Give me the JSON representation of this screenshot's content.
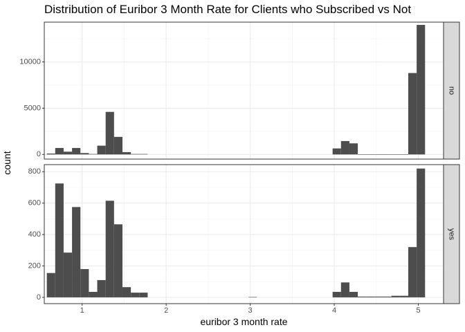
{
  "chart_data": {
    "type": "bar",
    "title": "Distribution of Euribor 3 Month Rate for Clients who Subscribed vs Not",
    "xlabel": "euribor 3 month rate",
    "ylabel": "count",
    "xlim": [
      0.55,
      5.3
    ],
    "bin_width": 0.1,
    "x_ticks": [
      1,
      2,
      3,
      4,
      5
    ],
    "grid": true,
    "facet_by": "subscribed",
    "series_color": "#4d4d4d",
    "strip_color": "#d9d9d9",
    "panels": [
      {
        "name": "no",
        "ylim": [
          -500,
          14300
        ],
        "y_ticks": [
          0,
          5000,
          10000
        ],
        "bins": [
          {
            "x": 0.63,
            "count": 100
          },
          {
            "x": 0.73,
            "count": 700
          },
          {
            "x": 0.83,
            "count": 300
          },
          {
            "x": 0.93,
            "count": 700
          },
          {
            "x": 1.03,
            "count": 150
          },
          {
            "x": 1.13,
            "count": 50
          },
          {
            "x": 1.23,
            "count": 950
          },
          {
            "x": 1.33,
            "count": 4600
          },
          {
            "x": 1.43,
            "count": 1900
          },
          {
            "x": 1.53,
            "count": 250
          },
          {
            "x": 1.63,
            "count": 50
          },
          {
            "x": 1.73,
            "count": 50
          },
          {
            "x": 4.03,
            "count": 650
          },
          {
            "x": 4.13,
            "count": 1450
          },
          {
            "x": 4.23,
            "count": 1200
          },
          {
            "x": 4.33,
            "count": 20
          },
          {
            "x": 4.43,
            "count": 10
          },
          {
            "x": 4.53,
            "count": 10
          },
          {
            "x": 4.63,
            "count": 10
          },
          {
            "x": 4.73,
            "count": 20
          },
          {
            "x": 4.83,
            "count": 20
          },
          {
            "x": 4.93,
            "count": 8800
          },
          {
            "x": 5.03,
            "count": 14000
          }
        ]
      },
      {
        "name": "yes",
        "ylim": [
          -40,
          845
        ],
        "y_ticks": [
          0,
          200,
          400,
          600,
          800
        ],
        "bins": [
          {
            "x": 0.63,
            "count": 155
          },
          {
            "x": 0.73,
            "count": 725
          },
          {
            "x": 0.83,
            "count": 285
          },
          {
            "x": 0.93,
            "count": 575
          },
          {
            "x": 1.03,
            "count": 180
          },
          {
            "x": 1.13,
            "count": 35
          },
          {
            "x": 1.23,
            "count": 110
          },
          {
            "x": 1.33,
            "count": 615
          },
          {
            "x": 1.43,
            "count": 465
          },
          {
            "x": 1.53,
            "count": 65
          },
          {
            "x": 1.63,
            "count": 30
          },
          {
            "x": 1.73,
            "count": 30
          },
          {
            "x": 3.03,
            "count": 2
          },
          {
            "x": 4.03,
            "count": 35
          },
          {
            "x": 4.13,
            "count": 95
          },
          {
            "x": 4.23,
            "count": 35
          },
          {
            "x": 4.33,
            "count": 5
          },
          {
            "x": 4.43,
            "count": 5
          },
          {
            "x": 4.53,
            "count": 5
          },
          {
            "x": 4.63,
            "count": 5
          },
          {
            "x": 4.73,
            "count": 10
          },
          {
            "x": 4.83,
            "count": 10
          },
          {
            "x": 4.93,
            "count": 320
          },
          {
            "x": 5.03,
            "count": 820
          }
        ]
      }
    ]
  }
}
